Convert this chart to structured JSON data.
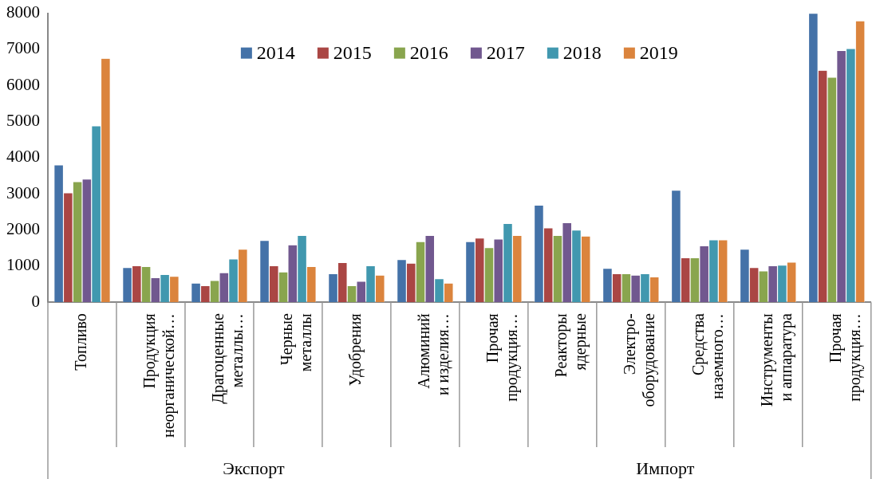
{
  "chart_data": {
    "type": "bar",
    "categories": [
      "Топливо",
      "Продукция неорганической…",
      "Драгоценные металлы…",
      "Черные металлы",
      "Удобрения",
      "Алюминий и изделия…",
      "Прочая продукция…",
      "Реакторы ядерные",
      "Электро-оборудование",
      "Средства наземного…",
      "Инструменты и аппаратура",
      "Прочая продукция…"
    ],
    "series": [
      {
        "name": "2014",
        "color": "#4472a8",
        "values": [
          3800,
          960,
          530,
          1710,
          790,
          1180,
          1680,
          2690,
          940,
          3100,
          1470,
          8000
        ]
      },
      {
        "name": "2015",
        "color": "#aa4644",
        "values": [
          3030,
          1010,
          460,
          1010,
          1100,
          1080,
          1780,
          2060,
          790,
          1230,
          960,
          6420
        ]
      },
      {
        "name": "2016",
        "color": "#89a54e",
        "values": [
          3340,
          990,
          600,
          840,
          460,
          1680,
          1510,
          1850,
          790,
          1230,
          870,
          6230
        ]
      },
      {
        "name": "2017",
        "color": "#71588f",
        "values": [
          3410,
          680,
          820,
          1590,
          580,
          1850,
          1750,
          2200,
          750,
          1560,
          1010,
          6970
        ]
      },
      {
        "name": "2018",
        "color": "#4198af",
        "values": [
          4880,
          770,
          1200,
          1850,
          1010,
          650,
          2180,
          2000,
          790,
          1730,
          1030,
          7020
        ]
      },
      {
        "name": "2019",
        "color": "#db843d",
        "values": [
          6750,
          720,
          1470,
          990,
          750,
          530,
          1850,
          1830,
          700,
          1730,
          1110,
          7790
        ]
      }
    ],
    "ylim": [
      0,
      8000
    ],
    "yticks": [
      0,
      1000,
      2000,
      3000,
      4000,
      5000,
      6000,
      7000,
      8000
    ],
    "legend": "top",
    "annotations": [
      "Экспорт",
      "Импорт"
    ]
  }
}
